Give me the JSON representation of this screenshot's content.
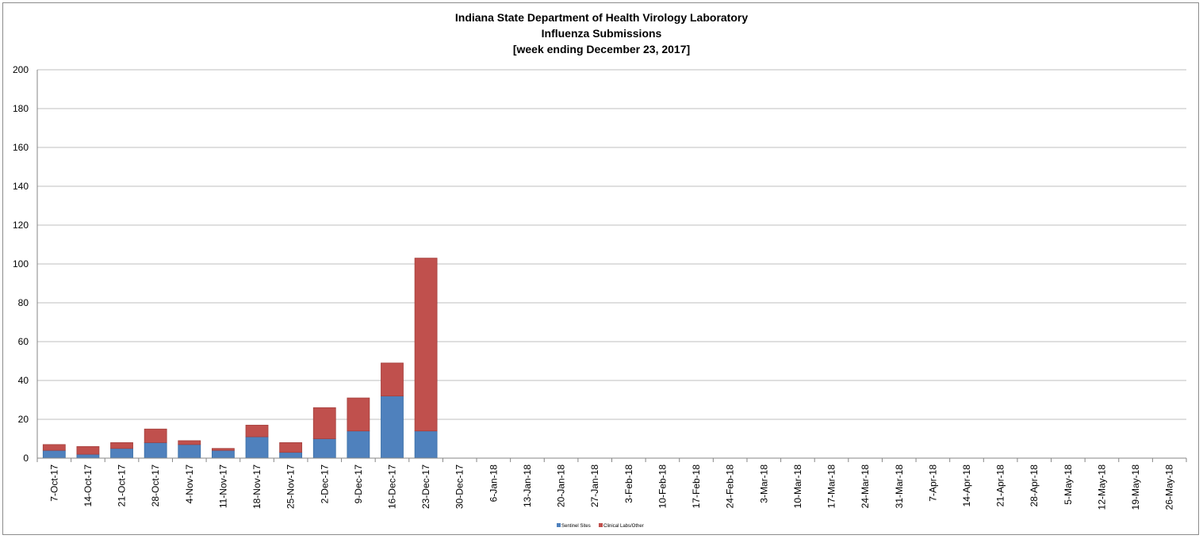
{
  "chart_data": {
    "type": "bar",
    "stacked": true,
    "title_lines": [
      "Indiana State Department of Health Virology Laboratory",
      "Influenza Submissions",
      "[week ending December 23, 2017]"
    ],
    "xlabel": "",
    "ylabel": "",
    "ylim": [
      0,
      200
    ],
    "yticks": [
      0,
      20,
      40,
      60,
      80,
      100,
      120,
      140,
      160,
      180,
      200
    ],
    "grid": true,
    "legend_position": "bottom",
    "categories": [
      "7-Oct-17",
      "14-Oct-17",
      "21-Oct-17",
      "28-Oct-17",
      "4-Nov-17",
      "11-Nov-17",
      "18-Nov-17",
      "25-Nov-17",
      "2-Dec-17",
      "9-Dec-17",
      "16-Dec-17",
      "23-Dec-17",
      "30-Dec-17",
      "6-Jan-18",
      "13-Jan-18",
      "20-Jan-18",
      "27-Jan-18",
      "3-Feb-18",
      "10-Feb-18",
      "17-Feb-18",
      "24-Feb-18",
      "3-Mar-18",
      "10-Mar-18",
      "17-Mar-18",
      "24-Mar-18",
      "31-Mar-18",
      "7-Apr-18",
      "14-Apr-18",
      "21-Apr-18",
      "28-Apr-18",
      "5-May-18",
      "12-May-18",
      "19-May-18",
      "26-May-18"
    ],
    "series": [
      {
        "name": "Sentinel Sites",
        "color": "#4f81bd",
        "values": [
          4,
          2,
          5,
          8,
          7,
          4,
          11,
          3,
          10,
          14,
          32,
          14,
          null,
          null,
          null,
          null,
          null,
          null,
          null,
          null,
          null,
          null,
          null,
          null,
          null,
          null,
          null,
          null,
          null,
          null,
          null,
          null,
          null,
          null
        ]
      },
      {
        "name": "Clinical Labs/Other",
        "color": "#c0504d",
        "values": [
          3,
          4,
          3,
          7,
          2,
          1,
          6,
          5,
          16,
          17,
          17,
          89,
          null,
          null,
          null,
          null,
          null,
          null,
          null,
          null,
          null,
          null,
          null,
          null,
          null,
          null,
          null,
          null,
          null,
          null,
          null,
          null,
          null,
          null
        ]
      }
    ]
  }
}
